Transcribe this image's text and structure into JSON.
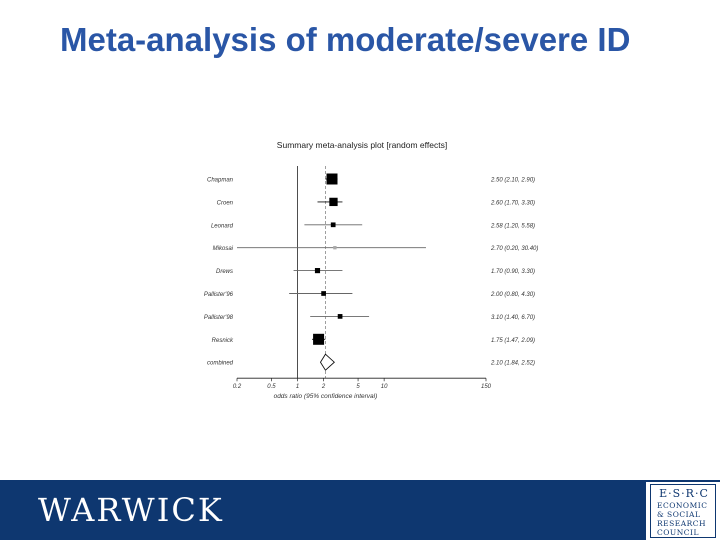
{
  "slide": {
    "title": "Meta-analysis of moderate/severe ID"
  },
  "chart_data": {
    "type": "forest",
    "title": "Summary meta-analysis plot [random effects]",
    "xlabel": "odds ratio (95% confidence interval)",
    "xscale": "log",
    "xlim": [
      0.2,
      150
    ],
    "xticks": [
      "0.2",
      "0.5",
      "1",
      "2",
      "5",
      "10",
      "150"
    ],
    "tick_values": [
      0.2,
      0.5,
      1,
      2,
      5,
      10,
      150
    ],
    "pooled_estimate": 2.1,
    "studies": [
      {
        "label": "Chapman",
        "or": 2.5,
        "lo": 2.1,
        "hi": 2.9,
        "weight": 1.0,
        "ci_text": "2.50 (2.10, 2.90)"
      },
      {
        "label": "Croen",
        "or": 2.6,
        "lo": 1.7,
        "hi": 3.3,
        "weight": 0.7,
        "ci_text": "2.60 (1.70, 3.30)"
      },
      {
        "label": "Leonard",
        "or": 2.58,
        "lo": 1.2,
        "hi": 5.58,
        "weight": 0.3,
        "ci_text": "2.58 (1.20, 5.58)"
      },
      {
        "label": "Mikosai",
        "or": 2.7,
        "lo": 0.2,
        "hi": 30.4,
        "weight": 0.15,
        "ci_text": "2.70 (0.20, 30.40)"
      },
      {
        "label": "Drews",
        "or": 1.7,
        "lo": 0.9,
        "hi": 3.3,
        "weight": 0.35,
        "ci_text": "1.70 (0.90, 3.30)"
      },
      {
        "label": "Pallister'96",
        "or": 2.0,
        "lo": 0.8,
        "hi": 4.3,
        "weight": 0.3,
        "ci_text": "2.00 (0.80, 4.30)"
      },
      {
        "label": "Pallister'98",
        "or": 3.1,
        "lo": 1.4,
        "hi": 6.7,
        "weight": 0.3,
        "ci_text": "3.10 (1.40, 6.70)"
      },
      {
        "label": "Resnick",
        "or": 1.75,
        "lo": 1.47,
        "hi": 2.09,
        "weight": 1.0,
        "ci_text": "1.75 (1.47, 2.09)"
      }
    ],
    "combined": {
      "label": "combined",
      "or": 2.1,
      "lo": 1.84,
      "hi": 2.52,
      "ci_text": "2.10 (1.84, 2.52)"
    }
  },
  "footer": {
    "warwick_logo_text": "WARWICK",
    "esrc_mark": "E·S·R·C",
    "esrc_lines": [
      "ECONOMIC",
      "& SOCIAL",
      "RESEARCH",
      "COUNCIL"
    ],
    "background": "#0e3770"
  }
}
